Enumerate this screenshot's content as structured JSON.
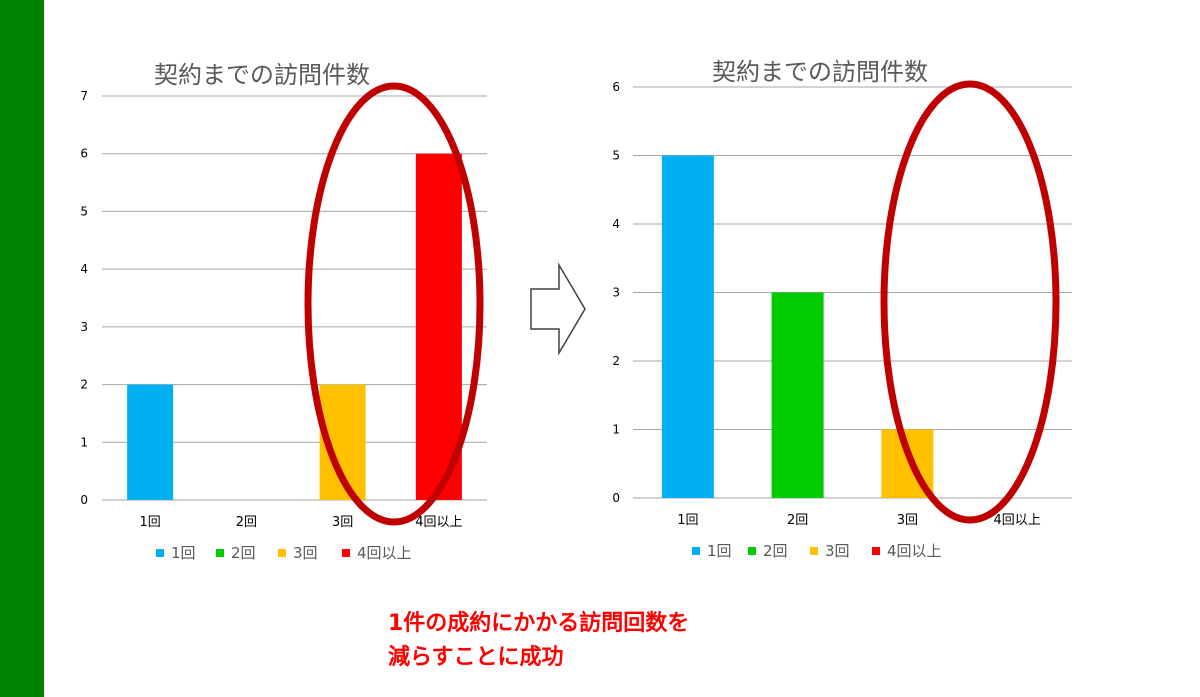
{
  "chart_data": [
    {
      "type": "bar",
      "title": "契約までの訪問件数",
      "categories": [
        "1回",
        "2回",
        "3回",
        "4回以上"
      ],
      "values": [
        2,
        0,
        2,
        6
      ],
      "colors": [
        "#00b0f0",
        "#00cc00",
        "#ffc000",
        "#ff0000"
      ],
      "ylim": [
        0,
        7
      ],
      "yticks": [
        0,
        1,
        2,
        3,
        4,
        5,
        6,
        7
      ],
      "grid": true,
      "legend": "bottom",
      "legend_entries": [
        "1回",
        "2回",
        "3回",
        "4回以上"
      ],
      "highlight": "ellipse-around-3回-and-4回以上"
    },
    {
      "type": "bar",
      "title": "契約までの訪問件数",
      "categories": [
        "1回",
        "2回",
        "3回",
        "4回以上"
      ],
      "values": [
        5,
        3,
        1,
        0
      ],
      "colors": [
        "#00b0f0",
        "#00cc00",
        "#ffc000",
        "#ff0000"
      ],
      "ylim": [
        0,
        6
      ],
      "yticks": [
        0,
        1,
        2,
        3,
        4,
        5,
        6
      ],
      "grid": true,
      "legend": "bottom",
      "legend_entries": [
        "1回",
        "2回",
        "3回",
        "4回以上"
      ],
      "highlight": "ellipse-around-3回-and-4回以上"
    }
  ],
  "caption": {
    "line1": "1件の成約にかかる訪問回数を",
    "line2": "減らすことに成功"
  },
  "colors": {
    "side_bar": "#008000",
    "highlight_ellipse": "#c00000",
    "caption": "#ff0000"
  },
  "arrow": {
    "icon": "right-arrow-icon"
  }
}
